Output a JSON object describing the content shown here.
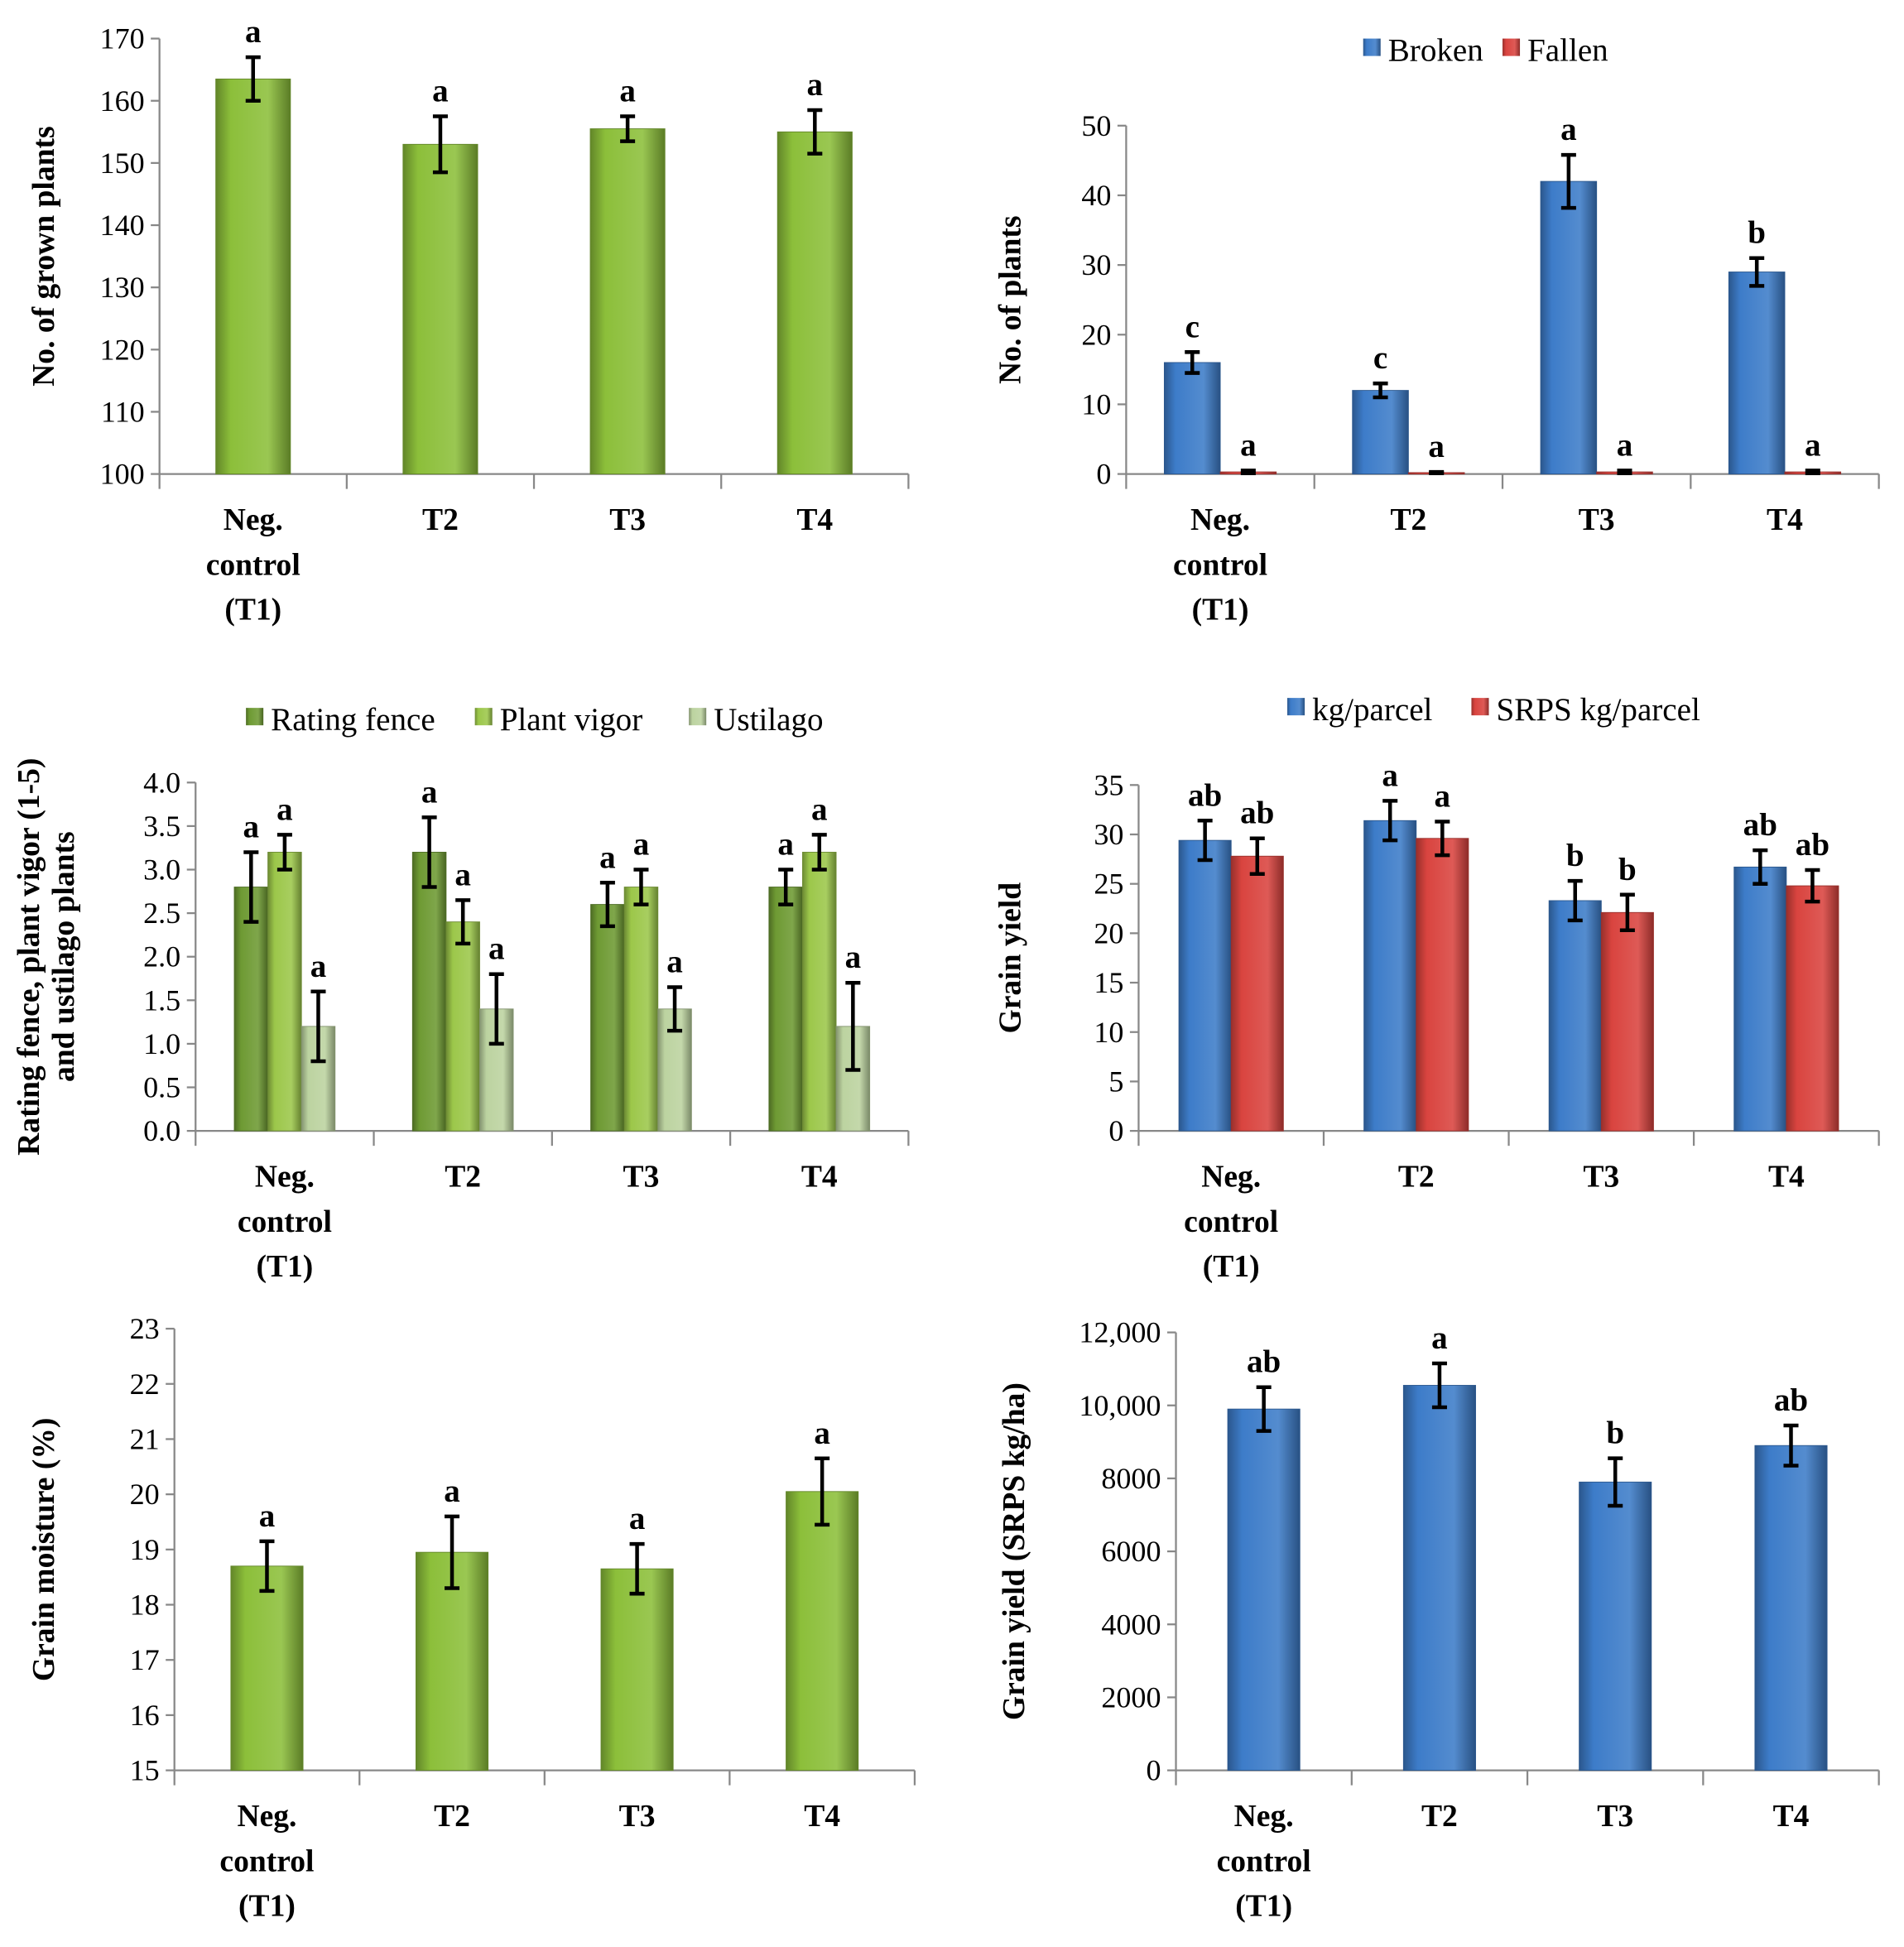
{
  "chart_data": [
    {
      "type": "bar",
      "id": "grown",
      "ylabel": "No. of grown plants",
      "ylim": [
        100,
        170
      ],
      "ystep": 10,
      "tickFormat": "plain",
      "categories": [
        [
          "Neg.",
          "control",
          "(T1)"
        ],
        [
          "T2"
        ],
        [
          "T3"
        ],
        [
          "T4"
        ]
      ],
      "series": [
        {
          "name": "No. of grown plants",
          "color": "#8cbf3a",
          "values": [
            163.5,
            153,
            155.5,
            155
          ],
          "errors": [
            3.5,
            4.5,
            2,
            3.5
          ],
          "letters": [
            "a",
            "a",
            "a",
            "a"
          ]
        }
      ],
      "legend": false
    },
    {
      "type": "bar",
      "id": "lodging",
      "ylabel": "No. of plants",
      "ylim": [
        0,
        50
      ],
      "ystep": 10,
      "tickFormat": "plain",
      "categories": [
        [
          "Neg.",
          "control",
          "(T1)"
        ],
        [
          "T2"
        ],
        [
          "T3"
        ],
        [
          "T4"
        ]
      ],
      "series": [
        {
          "name": "Broken",
          "color": "#3d7cc9",
          "values": [
            16,
            12,
            42,
            29
          ],
          "errors": [
            1.5,
            1,
            3.8,
            2
          ],
          "letters": [
            "c",
            "c",
            "a",
            "b"
          ]
        },
        {
          "name": "Fallen",
          "color": "#d9443f",
          "values": [
            0.3,
            0.2,
            0.3,
            0.3
          ],
          "errors": [
            0.2,
            0.1,
            0.2,
            0.2
          ],
          "letters": [
            "a",
            "a",
            "a",
            "a"
          ]
        }
      ],
      "legend": true
    },
    {
      "type": "bar",
      "id": "rating",
      "ylabel": [
        "Rating fence, plant vigor (1-5)",
        "and ustilago plants"
      ],
      "ylim": [
        0,
        4
      ],
      "ystep": 0.5,
      "tickFormat": "fixed1",
      "categories": [
        [
          "Neg.",
          "control",
          "(T1)"
        ],
        [
          "T2"
        ],
        [
          "T3"
        ],
        [
          "T4"
        ]
      ],
      "series": [
        {
          "name": "Rating fence",
          "color": "#6e9a33",
          "values": [
            2.8,
            3.2,
            2.6,
            2.8
          ],
          "errors": [
            0.4,
            0.4,
            0.25,
            0.2
          ],
          "letters": [
            "a",
            "a",
            "a",
            "a"
          ]
        },
        {
          "name": "Plant vigor",
          "color": "#9cc74a",
          "values": [
            3.2,
            2.4,
            2.8,
            3.2
          ],
          "errors": [
            0.2,
            0.25,
            0.2,
            0.2
          ],
          "letters": [
            "a",
            "a",
            "a",
            "a"
          ]
        },
        {
          "name": "Ustilago",
          "color": "#bcd3a0",
          "values": [
            1.2,
            1.4,
            1.4,
            1.2
          ],
          "errors": [
            0.4,
            0.4,
            0.25,
            0.5
          ],
          "letters": [
            "a",
            "a",
            "a",
            "a"
          ]
        }
      ],
      "legend": true
    },
    {
      "type": "bar",
      "id": "grainyield",
      "ylabel": "Grain yield",
      "ylim": [
        0,
        35
      ],
      "ystep": 5,
      "tickFormat": "plain",
      "categories": [
        [
          "Neg.",
          "control",
          "(T1)"
        ],
        [
          "T2"
        ],
        [
          "T3"
        ],
        [
          "T4"
        ]
      ],
      "series": [
        {
          "name": "kg/parcel",
          "color": "#3d7cc9",
          "values": [
            29.4,
            31.4,
            23.3,
            26.7
          ],
          "errors": [
            2,
            2,
            2,
            1.7
          ],
          "letters": [
            "ab",
            "a",
            "b",
            "ab"
          ]
        },
        {
          "name": "SRPS kg/parcel",
          "color": "#d9443f",
          "values": [
            27.8,
            29.6,
            22.1,
            24.8
          ],
          "errors": [
            1.8,
            1.7,
            1.8,
            1.6
          ],
          "letters": [
            "ab",
            "a",
            "b",
            "ab"
          ]
        }
      ],
      "legend": true
    },
    {
      "type": "bar",
      "id": "moisture",
      "ylabel": "Grain moisture (%)",
      "ylim": [
        15,
        23
      ],
      "ystep": 1,
      "tickFormat": "plain",
      "categories": [
        [
          "Neg.",
          "control",
          "(T1)"
        ],
        [
          "T2"
        ],
        [
          "T3"
        ],
        [
          "T4"
        ]
      ],
      "series": [
        {
          "name": "Grain moisture",
          "color": "#8cbf3a",
          "values": [
            18.7,
            18.95,
            18.65,
            20.05
          ],
          "errors": [
            0.45,
            0.65,
            0.45,
            0.6
          ],
          "letters": [
            "a",
            "a",
            "a",
            "a"
          ]
        }
      ],
      "legend": false
    },
    {
      "type": "bar",
      "id": "yieldha",
      "ylabel": "Grain yield (SRPS kg/ha)",
      "ylim": [
        0,
        12000
      ],
      "ystep": 2000,
      "tickFormat": "comma10k",
      "categories": [
        [
          "Neg.",
          "control",
          "(T1)"
        ],
        [
          "T2"
        ],
        [
          "T3"
        ],
        [
          "T4"
        ]
      ],
      "series": [
        {
          "name": "Grain yield",
          "color": "#3d7cc9",
          "values": [
            9900,
            10550,
            7900,
            8900
          ],
          "errors": [
            600,
            600,
            650,
            550
          ],
          "letters": [
            "ab",
            "a",
            "b",
            "ab"
          ]
        }
      ],
      "legend": false
    }
  ]
}
